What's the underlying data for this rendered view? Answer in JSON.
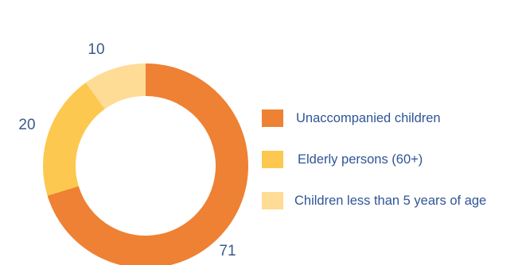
{
  "chart_data": {
    "type": "pie",
    "variant": "donut",
    "title": "",
    "categories": [
      "Unaccompanied children",
      "Elderly persons (60+)",
      "Children less than 5 years of age"
    ],
    "values": [
      71,
      20,
      10
    ],
    "value_labels": [
      "71",
      "20",
      "10"
    ],
    "colors": [
      "#ee8133",
      "#fdc84f",
      "#fedc96"
    ],
    "legend_placement": "right"
  }
}
